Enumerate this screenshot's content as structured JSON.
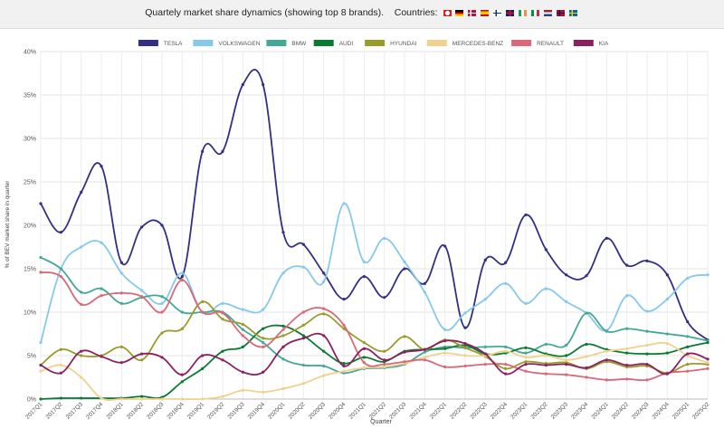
{
  "header": {
    "title": "Quartely market share dynamics (showing top 8 brands).",
    "countries_label": "Countries:",
    "countries": [
      "ch-flag-icon",
      "de-flag-icon",
      "dk-flag-icon",
      "es-flag-icon",
      "fi-flag-icon",
      "gb-flag-icon",
      "ie-flag-icon",
      "it-flag-icon",
      "nl-flag-icon",
      "no-flag-icon",
      "se-flag-icon"
    ]
  },
  "chart_data": {
    "type": "line",
    "title": "",
    "xlabel": "Quarter",
    "ylabel": "% of BEV market share in quarter",
    "ylim": [
      0,
      40
    ],
    "yticks": [
      0,
      5,
      10,
      15,
      20,
      25,
      30,
      35,
      40
    ],
    "ytick_labels": [
      "0%",
      "5%",
      "10%",
      "15%",
      "20%",
      "25%",
      "30%",
      "35%",
      "40%"
    ],
    "grid": true,
    "legend_position": "top",
    "categories": [
      "2017Q1",
      "2017Q2",
      "2017Q3",
      "2017Q4",
      "2018Q1",
      "2018Q2",
      "2018Q3",
      "2018Q4",
      "2019Q1",
      "2019Q2",
      "2019Q3",
      "2019Q4",
      "2020Q1",
      "2020Q2",
      "2020Q3",
      "2020Q4",
      "2021Q1",
      "2021Q2",
      "2021Q3",
      "2021Q4",
      "2022Q1",
      "2022Q2",
      "2022Q3",
      "2022Q4",
      "2023Q1",
      "2023Q2",
      "2023Q3",
      "2023Q4",
      "2024Q1",
      "2024Q2",
      "2024Q3",
      "2024Q4",
      "2025Q1",
      "2025Q2"
    ],
    "series": [
      {
        "name": "TESLA",
        "color": "#332f84",
        "values": [
          22.5,
          19.2,
          23.8,
          26.8,
          15.7,
          19.8,
          20.0,
          14.1,
          28.5,
          28.5,
          36.2,
          36.2,
          19.2,
          17.8,
          14.5,
          11.5,
          14.1,
          11.7,
          15.0,
          13.3,
          17.6,
          8.2,
          16.0,
          15.7,
          21.2,
          17.2,
          14.3,
          14.2,
          18.5,
          15.4,
          15.9,
          14.3,
          8.9,
          6.8
        ]
      },
      {
        "name": "VOLKSWAGEN",
        "color": "#86c9e9",
        "values": [
          6.5,
          15.0,
          17.5,
          18.0,
          14.5,
          12.5,
          11.0,
          14.5,
          10.0,
          11.0,
          10.3,
          10.3,
          14.5,
          15.2,
          13.5,
          22.5,
          15.8,
          18.5,
          15.8,
          12.3,
          8.0,
          9.9,
          11.5,
          13.3,
          11.0,
          12.7,
          11.2,
          9.9,
          7.9,
          11.9,
          10.1,
          11.5,
          13.9,
          14.3
        ]
      },
      {
        "name": "BMW",
        "color": "#44a897",
        "values": [
          16.3,
          15.0,
          12.3,
          12.7,
          11.0,
          11.7,
          11.8,
          10.0,
          10.0,
          10.0,
          8.0,
          6.5,
          4.6,
          3.9,
          3.8,
          3.0,
          3.5,
          3.6,
          4.0,
          5.4,
          6.0,
          5.9,
          6.0,
          6.0,
          5.3,
          6.3,
          6.2,
          9.9,
          7.8,
          8.1,
          7.8,
          7.5,
          7.2,
          6.7
        ]
      },
      {
        "name": "AUDI",
        "color": "#0d7a33",
        "values": [
          0.0,
          0.1,
          0.1,
          0.1,
          0.1,
          0.3,
          0.2,
          2.0,
          3.5,
          5.5,
          6.0,
          8.1,
          8.4,
          7.3,
          5.5,
          4.1,
          4.8,
          4.3,
          5.5,
          5.7,
          5.8,
          6.2,
          5.2,
          5.3,
          5.9,
          5.2,
          5.0,
          6.3,
          5.7,
          5.3,
          5.2,
          5.3,
          6.0,
          6.5
        ]
      },
      {
        "name": "HYUNDAI",
        "color": "#9b9a2c",
        "values": [
          3.9,
          5.7,
          5.0,
          5.0,
          6.0,
          4.5,
          7.6,
          8.1,
          11.2,
          9.2,
          8.6,
          7.0,
          7.3,
          8.5,
          9.8,
          8.1,
          6.5,
          5.5,
          7.2,
          5.7,
          6.8,
          5.9,
          4.9,
          3.5,
          4.3,
          4.1,
          4.2,
          3.5,
          4.3,
          3.7,
          3.8,
          3.0,
          4.0,
          4.0
        ]
      },
      {
        "name": "MERCEDES-BENZ",
        "color": "#eed290",
        "values": [
          3.2,
          3.9,
          2.5,
          0.1,
          0.0,
          0.0,
          0.0,
          0.0,
          0.0,
          0.3,
          1.0,
          0.8,
          1.2,
          1.8,
          2.7,
          3.2,
          3.6,
          3.7,
          4.1,
          4.8,
          5.3,
          5.0,
          5.0,
          5.5,
          4.8,
          5.0,
          4.5,
          4.9,
          5.5,
          5.8,
          6.2,
          6.4,
          5.0,
          4.2
        ]
      },
      {
        "name": "RENAULT",
        "color": "#d9697a",
        "values": [
          14.6,
          14.1,
          10.9,
          11.9,
          12.2,
          11.8,
          10.0,
          13.7,
          10.0,
          9.9,
          7.3,
          6.0,
          8.0,
          10.0,
          10.4,
          8.5,
          4.2,
          4.0,
          4.3,
          4.5,
          3.7,
          3.8,
          4.0,
          4.0,
          3.2,
          2.9,
          2.8,
          2.5,
          2.2,
          2.3,
          2.2,
          3.0,
          3.2,
          3.5
        ]
      },
      {
        "name": "KIA",
        "color": "#8b2163",
        "values": [
          3.9,
          3.0,
          5.5,
          4.9,
          4.2,
          5.2,
          4.8,
          2.8,
          5.0,
          4.5,
          3.1,
          3.1,
          6.0,
          7.0,
          7.3,
          3.8,
          5.8,
          4.5,
          5.4,
          5.7,
          6.7,
          6.4,
          5.2,
          2.9,
          4.0,
          3.9,
          4.0,
          3.6,
          4.5,
          3.9,
          4.0,
          2.9,
          5.2,
          4.6
        ]
      }
    ]
  }
}
